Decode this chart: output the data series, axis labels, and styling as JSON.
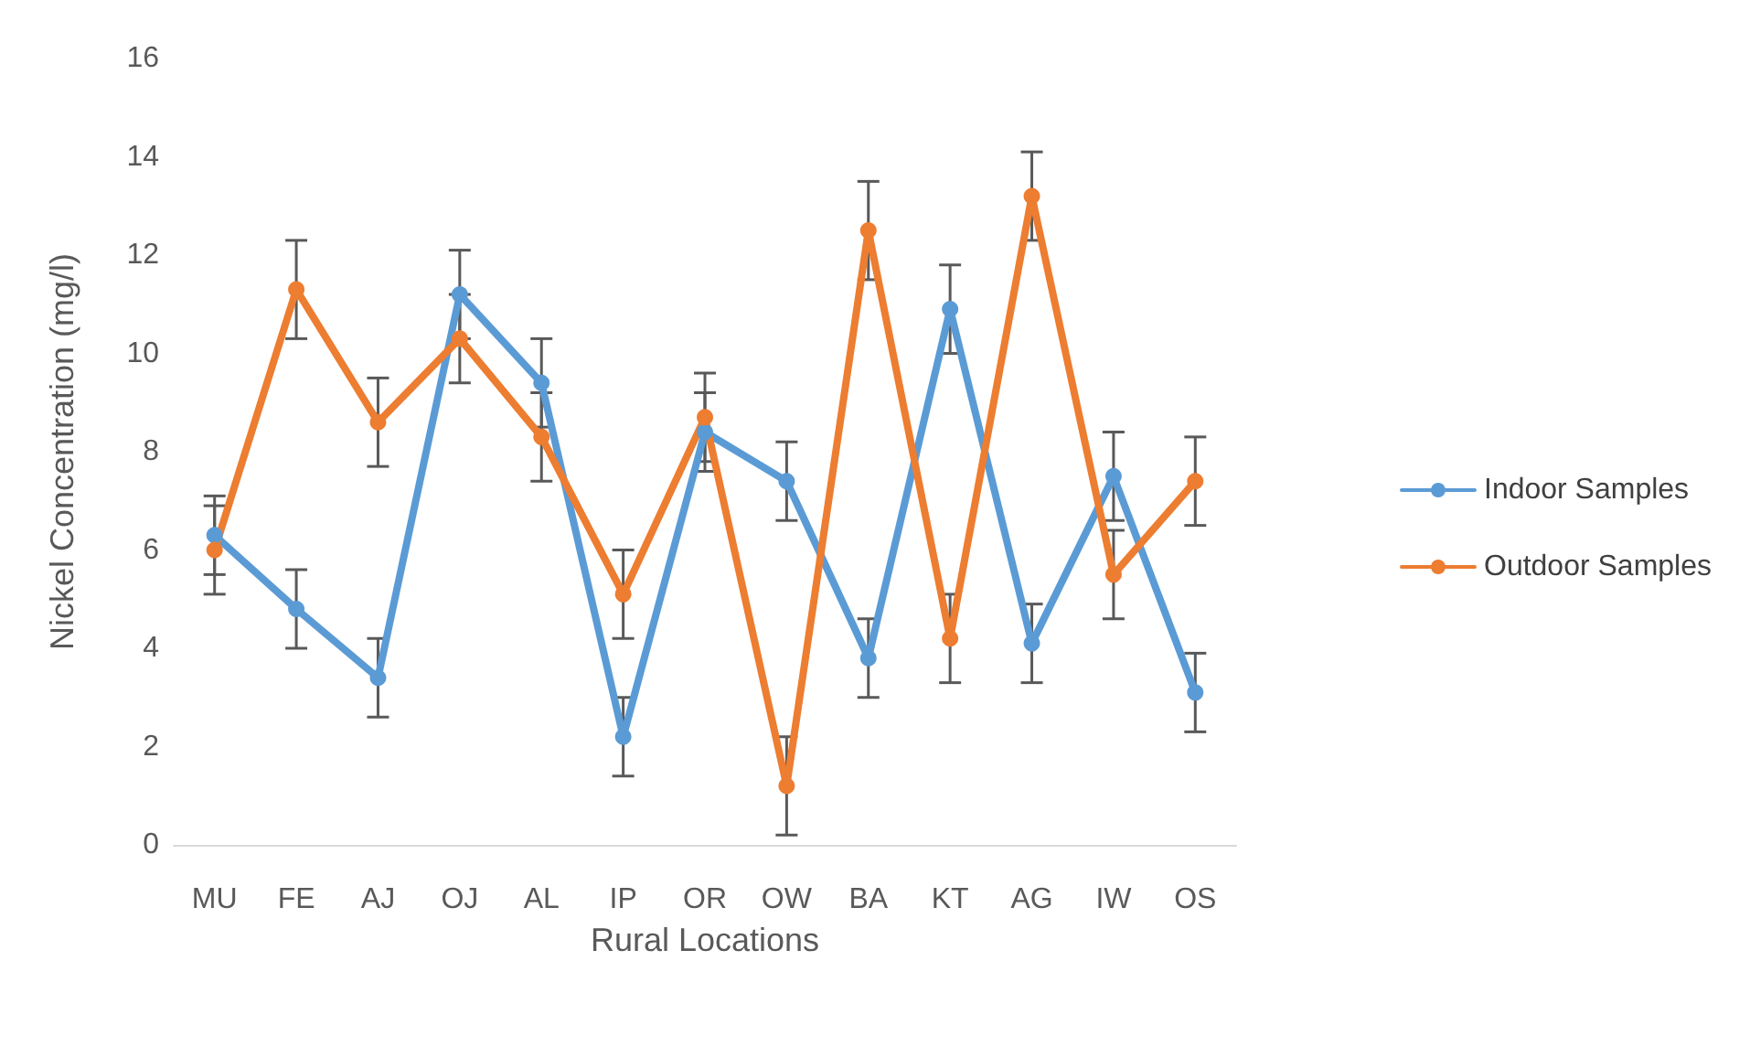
{
  "chart_data": {
    "type": "line",
    "xlabel": "Rural Locations",
    "ylabel": "Nickel Concentration (mg/l)",
    "categories": [
      "MU",
      "FE",
      "AJ",
      "OJ",
      "AL",
      "IP",
      "OR",
      "OW",
      "BA",
      "KT",
      "AG",
      "IW",
      "OS"
    ],
    "series": [
      {
        "name": "Indoor Samples",
        "color": "#5b9bd5",
        "values": [
          6.3,
          4.8,
          3.4,
          11.2,
          9.4,
          2.2,
          8.4,
          7.4,
          3.8,
          10.9,
          4.1,
          7.5,
          3.1
        ],
        "errors": [
          0.8,
          0.8,
          0.8,
          0.9,
          0.9,
          0.8,
          0.8,
          0.8,
          0.8,
          0.9,
          0.8,
          0.9,
          0.8
        ]
      },
      {
        "name": "Outdoor Samples",
        "color": "#ed7d31",
        "values": [
          6.0,
          11.3,
          8.6,
          10.3,
          8.3,
          5.1,
          8.7,
          1.2,
          12.5,
          4.2,
          13.2,
          5.5,
          7.4
        ],
        "errors": [
          0.9,
          1.0,
          0.9,
          0.9,
          0.9,
          0.9,
          0.9,
          1.0,
          1.0,
          0.9,
          0.9,
          0.9,
          0.9
        ]
      }
    ],
    "ylim": [
      0,
      16
    ],
    "yticks": [
      0,
      2,
      4,
      6,
      8,
      10,
      12,
      14,
      16
    ],
    "grid": false,
    "legend": "right",
    "marker": "circle",
    "line_style": "solid"
  }
}
